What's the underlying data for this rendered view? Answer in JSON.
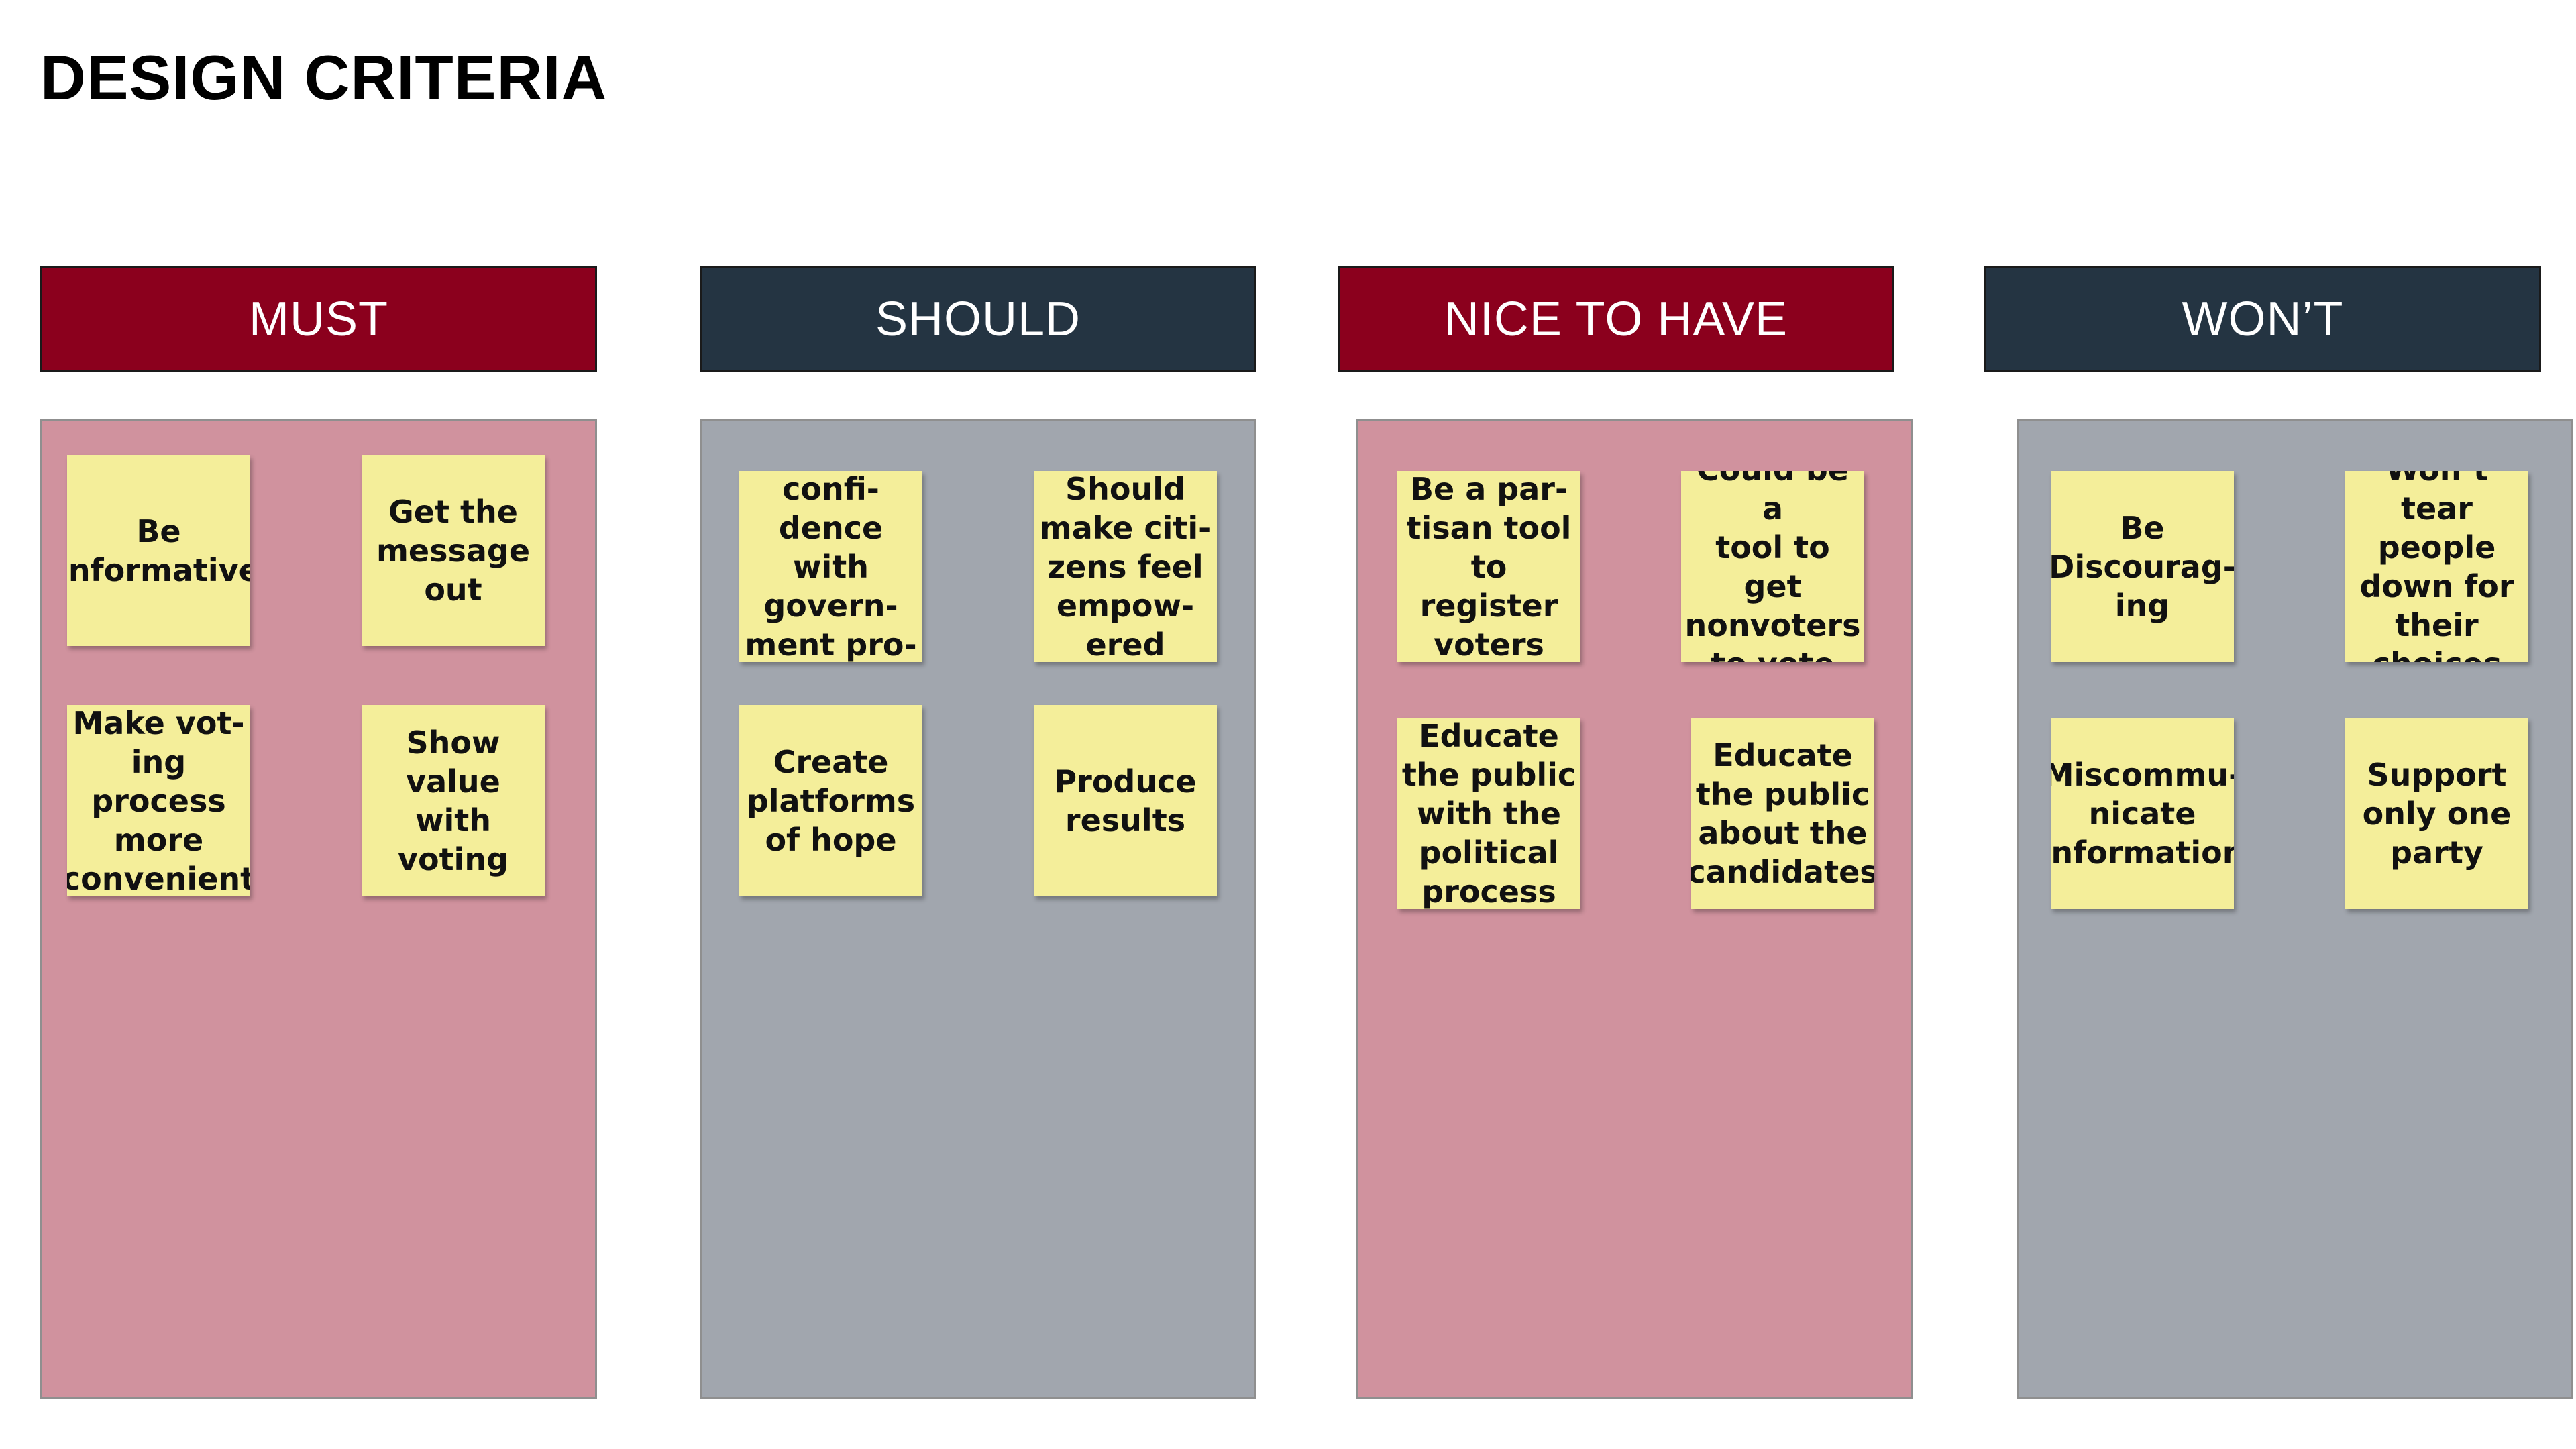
{
  "title": "DESIGN CRITERIA",
  "colors": {
    "header_red": "#8b001d",
    "header_navy": "#243442",
    "panel_pink": "#d0929e",
    "panel_gray": "#a1a6ae",
    "sticky_yellow": "#f4ee9a"
  },
  "columns": [
    {
      "label": "MUST",
      "notes": [
        "Be\ninformative",
        "Get the\nmessage\nout",
        "Make vot-\ning process\nmore\nconvenient",
        "Show value\nwith voting"
      ]
    },
    {
      "label": "SHOULD",
      "notes": [
        "Build confi-\ndence with\ngovern-\nment pro-\ncesses",
        "Should\nmake citi-\nzens feel\nempow-\nered",
        "Create\nplatforms\nof hope",
        "Produce\nresults"
      ]
    },
    {
      "label": "NICE TO HAVE",
      "notes": [
        "Be a par-\ntisan tool\nto register\nvoters",
        "Could be a\ntool to get\nnonvoters\nto vote",
        "Educate\nthe public\nwith the\npolitical\nprocess",
        "Educate\nthe public\nabout the\ncandidates"
      ]
    },
    {
      "label": "WON’T",
      "notes": [
        "Be\nDiscourag-\ning",
        "Won’t tear\npeople\ndown for\ntheir\nchoices",
        "Miscommu-\nnicate\ninformation",
        "Support\nonly one\nparty"
      ]
    }
  ]
}
